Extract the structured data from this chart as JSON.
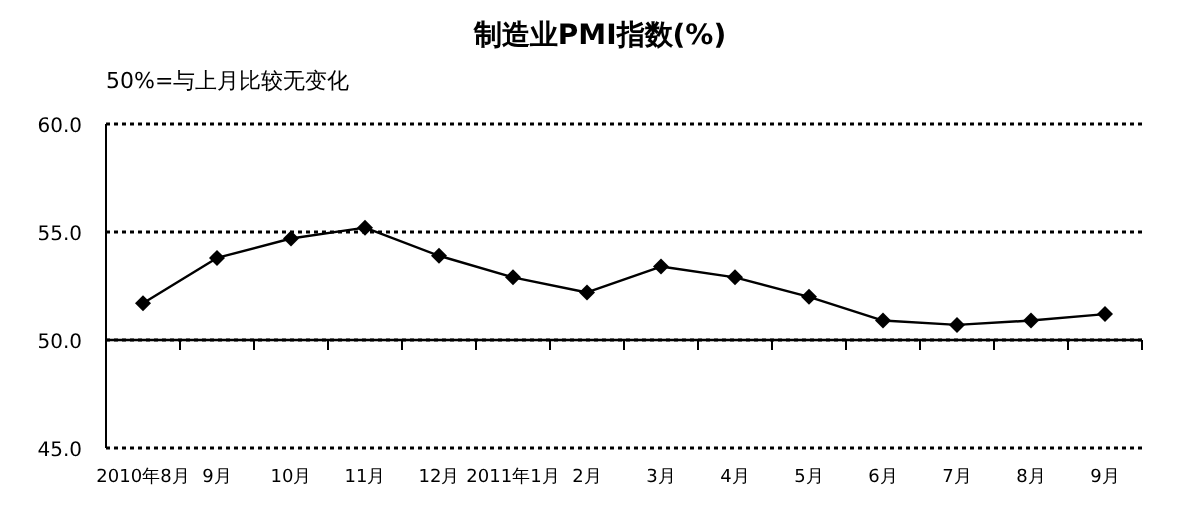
{
  "chart_data": {
    "type": "line",
    "title": "制造业PMI指数(%)",
    "annotations": [
      "50%=与上月比较无变化"
    ],
    "categories": [
      "2010年8月",
      "9月",
      "10月",
      "11月",
      "12月",
      "2011年1月",
      "2月",
      "3月",
      "4月",
      "5月",
      "6月",
      "7月",
      "8月",
      "9月"
    ],
    "series": [
      {
        "color": "#000000",
        "values": [
          51.7,
          53.8,
          54.7,
          55.2,
          53.9,
          52.9,
          52.2,
          53.4,
          52.9,
          52.0,
          50.9,
          50.7,
          50.9,
          51.2
        ]
      }
    ],
    "ylim": [
      45,
      60
    ],
    "yticks": [
      {
        "value": 45,
        "label": "45.0"
      },
      {
        "value": 50,
        "label": "50.0"
      },
      {
        "value": 55,
        "label": "55.0"
      },
      {
        "value": 60,
        "label": "60.0"
      }
    ],
    "ref_lines": [
      {
        "axis": "y",
        "value": 50,
        "line_style": "solid",
        "color": "#000000"
      }
    ],
    "grid": "y",
    "marker": "diamond",
    "line_style": "solid"
  }
}
